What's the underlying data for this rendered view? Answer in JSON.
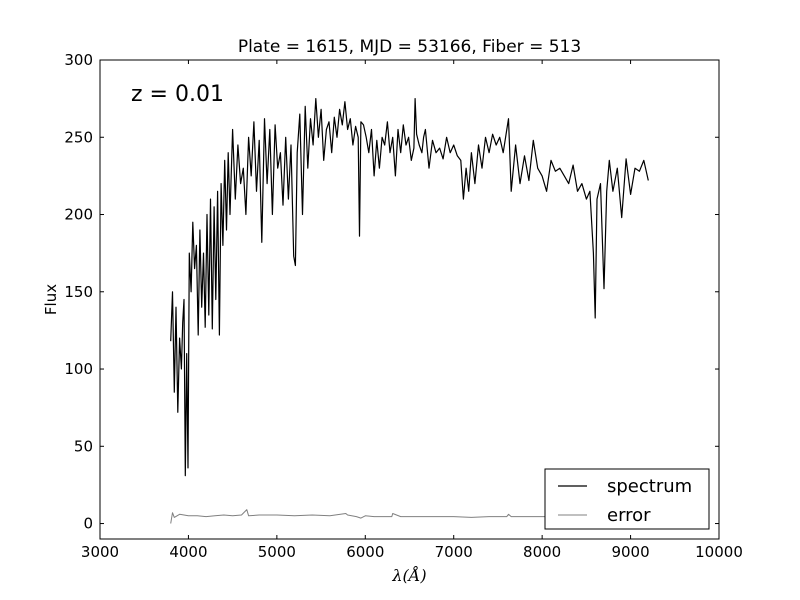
{
  "chart_data": {
    "type": "line",
    "title": "Plate = 1615, MJD = 53166, Fiber = 513",
    "xlabel": "λ(Å)",
    "ylabel": "Flux",
    "annotation": "z = 0.01",
    "xlim": [
      3000,
      10000
    ],
    "ylim": [
      -10,
      300
    ],
    "xticks": [
      3000,
      4000,
      5000,
      6000,
      7000,
      8000,
      9000,
      10000
    ],
    "yticks": [
      0,
      50,
      100,
      150,
      200,
      250,
      300
    ],
    "grid": false,
    "legend_position": "lower-right",
    "series": [
      {
        "name": "spectrum",
        "color": "#000000",
        "x": [
          3800,
          3820,
          3840,
          3860,
          3880,
          3900,
          3920,
          3935,
          3950,
          3965,
          3980,
          3995,
          4010,
          4030,
          4050,
          4070,
          4090,
          4110,
          4130,
          4150,
          4170,
          4190,
          4210,
          4230,
          4250,
          4270,
          4290,
          4310,
          4330,
          4350,
          4370,
          4390,
          4410,
          4430,
          4450,
          4470,
          4500,
          4530,
          4560,
          4590,
          4620,
          4650,
          4680,
          4710,
          4740,
          4770,
          4800,
          4830,
          4860,
          4890,
          4920,
          4950,
          4980,
          5010,
          5040,
          5070,
          5100,
          5130,
          5160,
          5190,
          5210,
          5230,
          5260,
          5290,
          5320,
          5350,
          5380,
          5410,
          5440,
          5470,
          5500,
          5530,
          5560,
          5590,
          5620,
          5650,
          5680,
          5710,
          5740,
          5770,
          5800,
          5830,
          5860,
          5890,
          5920,
          5935,
          5950,
          5980,
          6010,
          6040,
          6070,
          6100,
          6130,
          6160,
          6190,
          6220,
          6250,
          6280,
          6310,
          6340,
          6370,
          6400,
          6430,
          6460,
          6490,
          6520,
          6550,
          6563,
          6580,
          6610,
          6640,
          6660,
          6680,
          6720,
          6760,
          6800,
          6840,
          6880,
          6920,
          6960,
          7000,
          7040,
          7080,
          7110,
          7140,
          7170,
          7200,
          7240,
          7280,
          7320,
          7360,
          7400,
          7440,
          7480,
          7520,
          7560,
          7600,
          7620,
          7650,
          7700,
          7750,
          7800,
          7850,
          7900,
          7950,
          8000,
          8050,
          8100,
          8150,
          8200,
          8250,
          8300,
          8350,
          8400,
          8450,
          8500,
          8540,
          8580,
          8600,
          8620,
          8660,
          8700,
          8730,
          8760,
          8800,
          8850,
          8900,
          8950,
          9000,
          9050,
          9100,
          9150,
          9200
        ],
        "y": [
          118,
          150,
          85,
          140,
          72,
          120,
          100,
          130,
          145,
          31,
          110,
          36,
          175,
          150,
          195,
          165,
          180,
          122,
          190,
          140,
          175,
          127,
          200,
          135,
          210,
          126,
          205,
          145,
          215,
          122,
          220,
          180,
          235,
          190,
          240,
          200,
          255,
          210,
          245,
          220,
          230,
          200,
          250,
          225,
          260,
          215,
          248,
          182,
          262,
          220,
          255,
          200,
          258,
          230,
          240,
          206,
          250,
          210,
          245,
          173,
          167,
          240,
          265,
          200,
          270,
          230,
          262,
          245,
          275,
          250,
          268,
          235,
          255,
          260,
          240,
          263,
          250,
          268,
          258,
          273,
          255,
          262,
          245,
          257,
          250,
          186,
          260,
          258,
          250,
          240,
          255,
          225,
          248,
          230,
          250,
          245,
          260,
          240,
          250,
          225,
          255,
          240,
          258,
          245,
          250,
          235,
          243,
          275,
          252,
          245,
          240,
          250,
          255,
          230,
          248,
          240,
          243,
          236,
          250,
          240,
          245,
          238,
          235,
          210,
          230,
          215,
          240,
          220,
          245,
          230,
          250,
          240,
          252,
          245,
          250,
          240,
          255,
          262,
          215,
          245,
          220,
          238,
          222,
          248,
          230,
          225,
          215,
          235,
          228,
          230,
          225,
          220,
          232,
          215,
          220,
          210,
          215,
          175,
          133,
          210,
          220,
          152,
          215,
          235,
          215,
          230,
          198,
          236,
          213,
          230,
          228,
          235,
          222
        ],
        "linewidth": 1.2
      },
      {
        "name": "error",
        "color": "#808080",
        "x": [
          3800,
          3820,
          3840,
          3900,
          4000,
          4100,
          4200,
          4300,
          4400,
          4500,
          4600,
          4660,
          4680,
          4800,
          5000,
          5200,
          5400,
          5600,
          5780,
          5800,
          5900,
          5950,
          6000,
          6100,
          6200,
          6300,
          6310,
          6400,
          6600,
          6800,
          7000,
          7200,
          7400,
          7600,
          7620,
          7650,
          7800,
          8000,
          8200,
          8400,
          8600,
          8800,
          9000,
          9200
        ],
        "y": [
          0,
          7,
          4,
          6,
          5,
          5,
          4.5,
          5,
          5.5,
          5,
          5.5,
          9,
          5,
          5.5,
          5.5,
          5,
          5.5,
          5,
          6.5,
          5.5,
          4.5,
          3.5,
          5,
          4.5,
          4.5,
          4.5,
          6.5,
          4.5,
          4.5,
          4.5,
          4.5,
          4,
          4.5,
          4.5,
          6,
          4.5,
          4.5,
          4.5,
          4.5,
          4.5,
          4.5,
          4.5,
          4.5,
          4.5
        ],
        "linewidth": 1.0
      }
    ]
  }
}
